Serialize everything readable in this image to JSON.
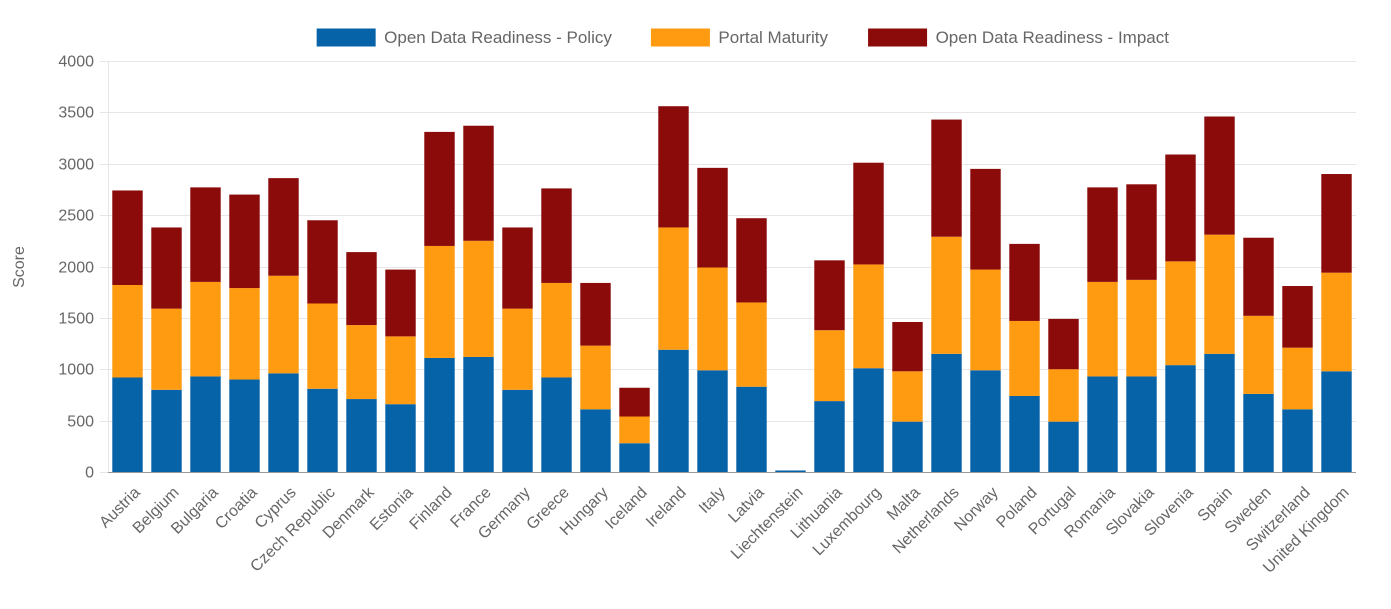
{
  "chart_data": {
    "type": "bar",
    "stacked": true,
    "ylabel": "Score",
    "xlabel": "",
    "ylim": [
      0,
      4000
    ],
    "yticks": [
      0,
      500,
      1000,
      1500,
      2000,
      2500,
      3000,
      3500,
      4000
    ],
    "grid": true,
    "legend_position": "top-center",
    "categories": [
      "Austria",
      "Belgium",
      "Bulgaria",
      "Croatia",
      "Cyprus",
      "Czech Republic",
      "Denmark",
      "Estonia",
      "Finland",
      "France",
      "Germany",
      "Greece",
      "Hungary",
      "Iceland",
      "Ireland",
      "Italy",
      "Latvia",
      "Liechtenstein",
      "Lithuania",
      "Luxembourg",
      "Malta",
      "Netherlands",
      "Norway",
      "Poland",
      "Portugal",
      "Romania",
      "Slovakia",
      "Slovenia",
      "Spain",
      "Sweden",
      "Switzerland",
      "United Kingdom"
    ],
    "series": [
      {
        "name": "Open Data Readiness - Policy",
        "color": "#0663a8",
        "values": [
          920,
          800,
          930,
          900,
          960,
          810,
          710,
          660,
          1110,
          1120,
          800,
          920,
          610,
          280,
          1190,
          990,
          830,
          15,
          690,
          1010,
          490,
          1150,
          990,
          740,
          490,
          930,
          930,
          1040,
          1150,
          760,
          610,
          980
        ]
      },
      {
        "name": "Portal Maturity",
        "color": "#ff9b10",
        "values": [
          900,
          790,
          920,
          890,
          950,
          830,
          720,
          660,
          1090,
          1130,
          790,
          920,
          620,
          260,
          1190,
          1000,
          820,
          0,
          690,
          1010,
          490,
          1140,
          980,
          730,
          510,
          920,
          940,
          1010,
          1160,
          760,
          600,
          960
        ]
      },
      {
        "name": "Open Data Readiness - Impact",
        "color": "#8b0b0b",
        "values": [
          920,
          790,
          920,
          910,
          950,
          810,
          710,
          650,
          1110,
          1120,
          790,
          920,
          610,
          280,
          1180,
          970,
          820,
          0,
          680,
          990,
          480,
          1140,
          980,
          750,
          490,
          920,
          930,
          1040,
          1150,
          760,
          600,
          960
        ]
      }
    ]
  }
}
